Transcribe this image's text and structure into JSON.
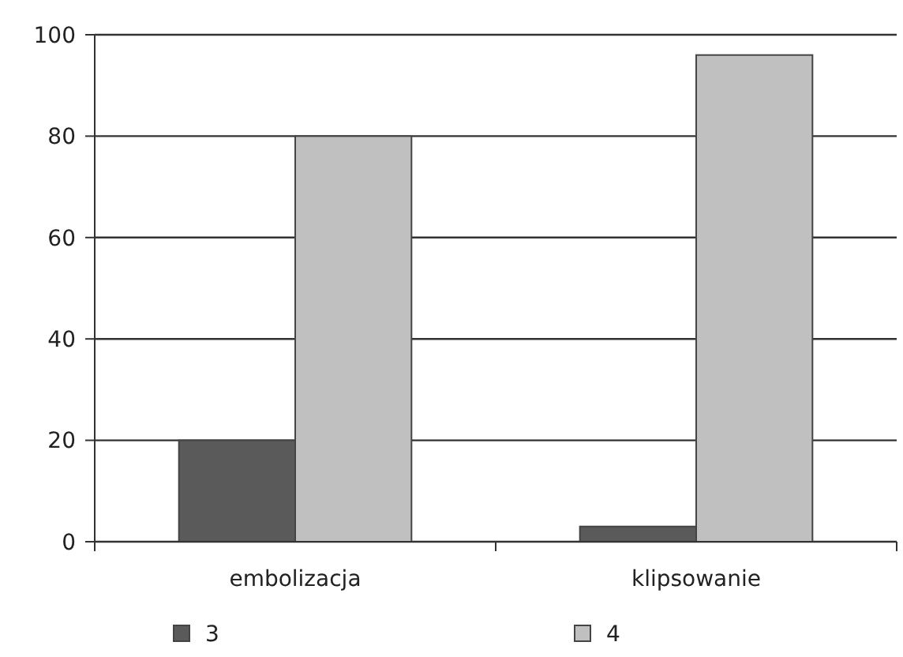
{
  "chart_data": {
    "type": "bar",
    "categories": [
      "embolizacja",
      "klipsowanie"
    ],
    "series": [
      {
        "name": "3",
        "color": "#5a5a5a",
        "values": [
          20,
          3
        ]
      },
      {
        "name": "4",
        "color": "#c0c0c0",
        "values": [
          80,
          96
        ]
      }
    ],
    "ylim": [
      0,
      100
    ],
    "yticks": [
      0,
      20,
      40,
      60,
      80,
      100
    ],
    "grid": "y",
    "legend": "bottom"
  }
}
